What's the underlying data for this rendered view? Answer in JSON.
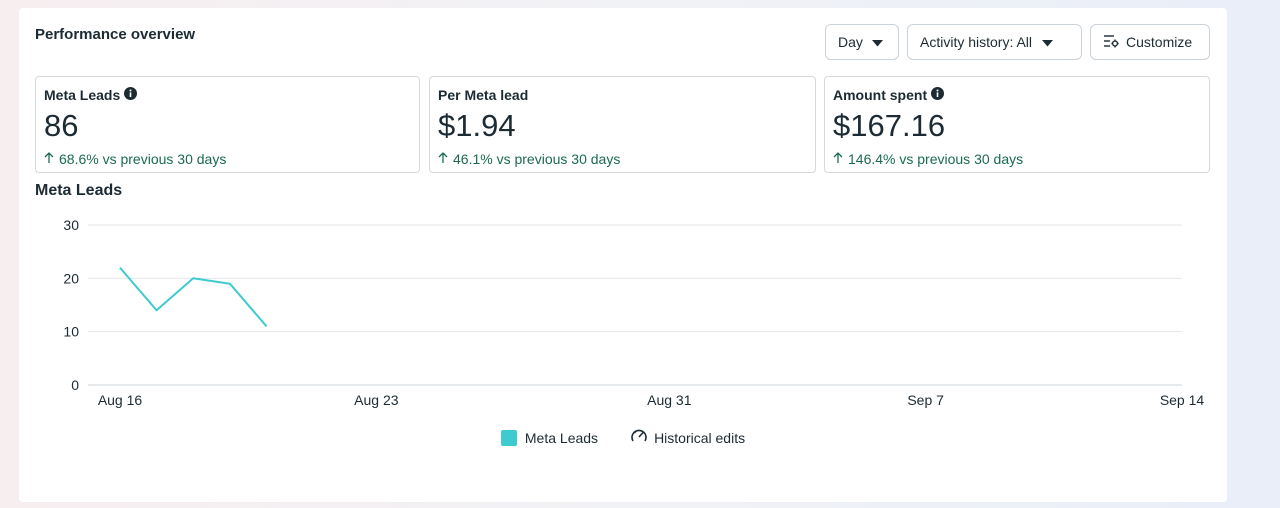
{
  "header": {
    "title": "Performance overview",
    "day_label": "Day",
    "activity_label": "Activity history: All",
    "customize_label": "Customize"
  },
  "cards": [
    {
      "label": "Meta Leads",
      "value": "86",
      "change": "68.6% vs previous 30 days",
      "has_info": true
    },
    {
      "label": "Per Meta lead",
      "value": "$1.94",
      "change": "46.1% vs previous 30 days",
      "has_info": false
    },
    {
      "label": "Amount spent",
      "value": "$167.16",
      "change": "146.4% vs previous 30 days",
      "has_info": true
    }
  ],
  "colors": {
    "accent": "#3ecbcf",
    "positive": "#1a6b4e"
  },
  "chart_data": {
    "type": "line",
    "title": "Meta Leads",
    "ylim": [
      0,
      30
    ],
    "y_ticks": [
      0,
      10,
      20,
      30
    ],
    "x_ticks": [
      "Aug 16",
      "Aug 23",
      "Aug 31",
      "Sep 7",
      "Sep 14"
    ],
    "x_tick_days": [
      0,
      7,
      15,
      22,
      29
    ],
    "x_range_days": [
      0,
      29
    ],
    "series": [
      {
        "name": "Meta Leads",
        "x_days": [
          0,
          1,
          2,
          3,
          4
        ],
        "values": [
          22,
          14,
          20,
          19,
          11
        ]
      }
    ],
    "grid": true,
    "legend_position": "bottom-center"
  },
  "legend": {
    "series_label": "Meta Leads",
    "historical_label": "Historical edits"
  }
}
